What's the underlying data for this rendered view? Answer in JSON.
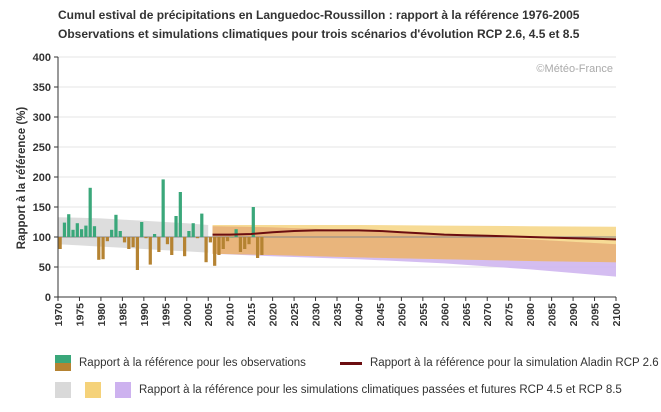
{
  "title": "Cumul estival de précipitations en Languedoc-Roussillon : rapport à la référence 1976-2005",
  "subtitle": "Observations et simulations climatiques pour trois scénarios d'évolution RCP 2.6, 4.5 et 8.5",
  "credit": "©Météo-France",
  "colors": {
    "obs_above": "#3aa77a",
    "obs_below": "#b58332",
    "rcp26_line": "#6b0d10",
    "band_hist": "#d9d9d9",
    "band_rcp45": "#f5d27a",
    "band_rcp85": "#cdb2ef",
    "band_overlap": "#e8b078"
  },
  "legend": {
    "observations": "Rapport à la référence pour les observations",
    "rcp26": "Rapport à la référence pour la simulation Aladin RCP 2.6",
    "bands": "Rapport à la référence pour les simulations climatiques passées et futures RCP 4.5 et RCP 8.5"
  },
  "chart_data": {
    "type": "bar",
    "ylabel": "Rapport à la référence (%)",
    "xlabel": "",
    "xlim": [
      1970,
      2100
    ],
    "ylim": [
      0,
      400
    ],
    "yticks": [
      0,
      50,
      100,
      150,
      200,
      250,
      300,
      350,
      400
    ],
    "xticks": [
      1970,
      1975,
      1980,
      1985,
      1990,
      1995,
      2000,
      2005,
      2010,
      2015,
      2020,
      2025,
      2030,
      2035,
      2040,
      2045,
      2050,
      2055,
      2060,
      2065,
      2070,
      2075,
      2080,
      2085,
      2090,
      2095,
      2100
    ],
    "reference": 100,
    "observations": {
      "years": [
        1970,
        1971,
        1972,
        1973,
        1974,
        1975,
        1976,
        1977,
        1978,
        1979,
        1980,
        1981,
        1982,
        1983,
        1984,
        1985,
        1986,
        1987,
        1988,
        1989,
        1990,
        1991,
        1992,
        1993,
        1994,
        1995,
        1996,
        1997,
        1998,
        1999,
        2000,
        2001,
        2002,
        2003,
        2004,
        2005,
        2006,
        2007,
        2008,
        2009,
        2010,
        2011,
        2012,
        2013,
        2014,
        2015,
        2016,
        2017
      ],
      "values": [
        80,
        124,
        138,
        112,
        123,
        113,
        119,
        182,
        118,
        62,
        63,
        93,
        112,
        137,
        110,
        91,
        80,
        83,
        45,
        125,
        98,
        54,
        105,
        75,
        196,
        88,
        70,
        135,
        175,
        68,
        110,
        123,
        98,
        139,
        58,
        91,
        52,
        70,
        80,
        93,
        100,
        113,
        75,
        80,
        88,
        150,
        65,
        70
      ]
    },
    "rcp26_simulation": {
      "x": [
        2006,
        2010,
        2015,
        2020,
        2025,
        2030,
        2035,
        2040,
        2045,
        2050,
        2055,
        2060,
        2065,
        2070,
        2075,
        2080,
        2085,
        2090,
        2095,
        2100
      ],
      "y": [
        104,
        104,
        105,
        108,
        110,
        111,
        111,
        111,
        110,
        108,
        106,
        104,
        103,
        102,
        101,
        100,
        99,
        98,
        97,
        96
      ]
    },
    "band_historical": {
      "x": [
        1970,
        1975,
        1980,
        1985,
        1990,
        1995,
        2000,
        2005
      ],
      "low": [
        88,
        86,
        84,
        82,
        80,
        78,
        76,
        74
      ],
      "high": [
        133,
        132,
        131,
        129,
        127,
        125,
        123,
        120
      ]
    },
    "band_rcp45": {
      "x": [
        2006,
        2020,
        2040,
        2060,
        2080,
        2100
      ],
      "low": [
        72,
        70,
        66,
        63,
        60,
        58
      ],
      "high": [
        120,
        120,
        120,
        119,
        118,
        117
      ]
    },
    "band_rcp85": {
      "x": [
        2006,
        2020,
        2040,
        2060,
        2080,
        2100
      ],
      "low": [
        72,
        68,
        63,
        56,
        46,
        34
      ],
      "high": [
        118,
        116,
        111,
        104,
        96,
        88
      ]
    }
  }
}
